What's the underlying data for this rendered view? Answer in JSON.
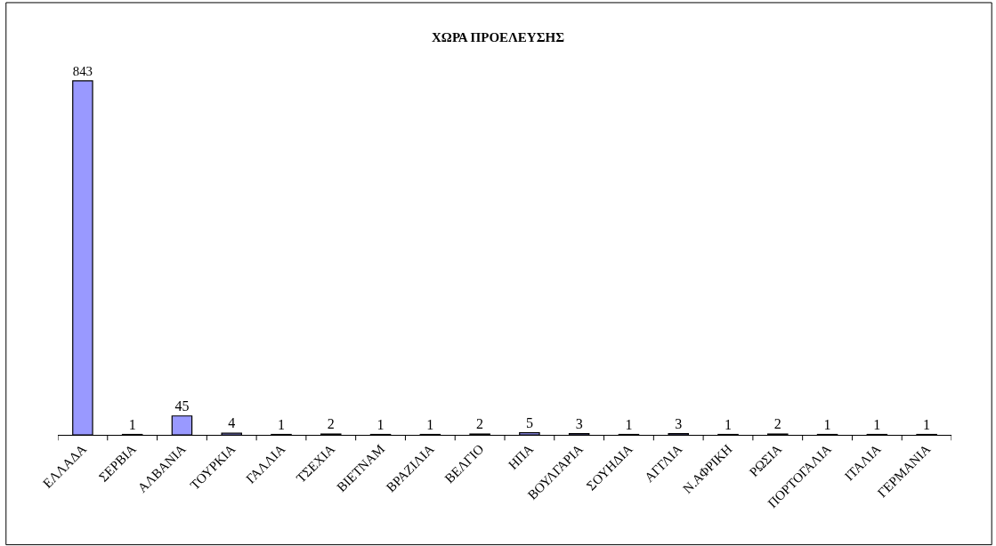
{
  "chart_data": {
    "type": "bar",
    "title": "ΧΩΡΑ ΠΡΟΕΛΕΥΣΗΣ",
    "categories": [
      "ΕΛΛΑΔΑ",
      "ΣΕΡΒΙΑ",
      "ΑΛΒΑΝΙΑ",
      "ΤΟΥΡΚΙΑ",
      "ΓΑΛΛΙΑ",
      "ΤΣΕΧΙΑ",
      "ΒΙΕΤΝΑΜ",
      "ΒΡΑΖΙΛΙΑ",
      "ΒΕΛΓΙΟ",
      "ΗΠΑ",
      "ΒΟΥΛΓΑΡΙΑ",
      "ΣΟΥΗΔΙΑ",
      "ΑΓΓΛΙΑ",
      "Ν.ΑΦΡΙΚΗ",
      "ΡΩΣΙΑ",
      "ΠΟΡΤΟΓΑΛΙΑ",
      "ΙΤΑΛΙΑ",
      "ΓΕΡΜΑΝΙΑ"
    ],
    "values": [
      843,
      1,
      45,
      4,
      1,
      2,
      1,
      1,
      2,
      5,
      3,
      1,
      3,
      1,
      2,
      1,
      1,
      1
    ],
    "color": "#9999ff",
    "data_labels": true,
    "tick_labels": "x"
  }
}
